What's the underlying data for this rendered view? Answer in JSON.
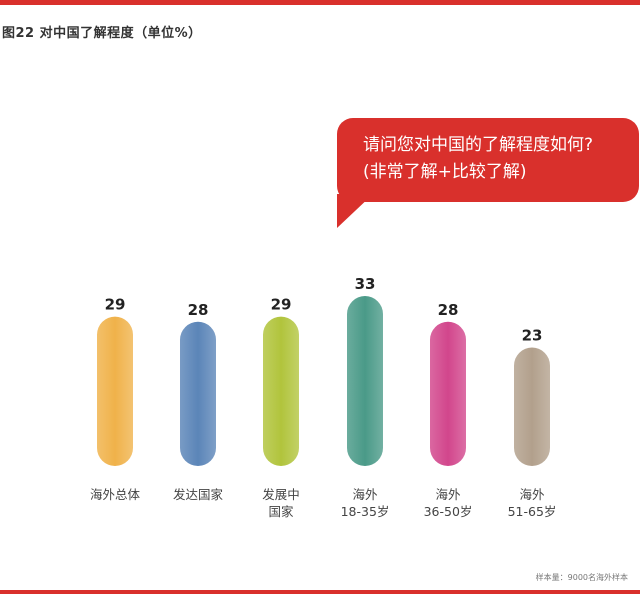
{
  "title": "图22  对中国了解程度（单位%）",
  "bubble": {
    "line1": "请问您对中国的了解程度如何?",
    "line2": "(非常了解+比较了解)"
  },
  "footnote": "样本量：9000名海外样本",
  "colors": {
    "accent": "#d9302c",
    "bars": [
      "#f0b24a",
      "#5b85b8",
      "#b1c43c",
      "#4a9a88",
      "#d2468c",
      "#b2a08c"
    ]
  },
  "chart_data": {
    "type": "bar",
    "categories": [
      [
        "海外总体"
      ],
      [
        "发达国家"
      ],
      [
        "发展中",
        "国家"
      ],
      [
        "海外",
        "18-35岁"
      ],
      [
        "海外",
        "36-50岁"
      ],
      [
        "海外",
        "51-65岁"
      ]
    ],
    "values": [
      29,
      28,
      29,
      33,
      28,
      23
    ],
    "xlabel": "",
    "ylabel": "",
    "grid": false,
    "legend": "none"
  }
}
